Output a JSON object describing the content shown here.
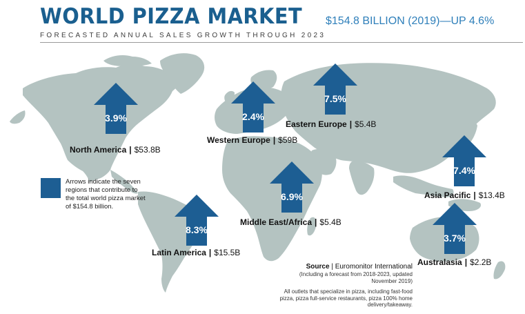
{
  "header": {
    "title": "WORLD PIZZA MARKET",
    "subtitle": "FORECASTED ANNUAL SALES GROWTH THROUGH 2023",
    "headline": "$154.8 BILLION (2019)—UP 4.6%"
  },
  "colors": {
    "title": "#1a5f8f",
    "headline": "#2e7fba",
    "arrow_fill": "#1d5e93",
    "land": "#b4c3c1"
  },
  "regions": [
    {
      "name": "North America",
      "value": "$53.8B",
      "growth": "3.9%",
      "growth_pct": 3.9
    },
    {
      "name": "Western Europe",
      "value": "$59B",
      "growth": "2.4%",
      "growth_pct": 2.4
    },
    {
      "name": "Eastern Europe",
      "value": "$5.4B",
      "growth": "7.5%",
      "growth_pct": 7.5
    },
    {
      "name": "Asia Pacific",
      "value": "$13.4B",
      "growth": "7.4%",
      "growth_pct": 7.4
    },
    {
      "name": "Middle East/Africa",
      "value": "$5.4B",
      "growth": "6.9%",
      "growth_pct": 6.9
    },
    {
      "name": "Latin America",
      "value": "$15.5B",
      "growth": "8.3%",
      "growth_pct": 8.3
    },
    {
      "name": "Australasia",
      "value": "$2.2B",
      "growth": "3.7%",
      "growth_pct": 3.7
    }
  ],
  "separator": "|",
  "legend": {
    "text": "Arrows indicate the seven regions that contribute to the total world pizza market of $154.8 billion."
  },
  "source": {
    "label": "Source",
    "org": "Euromonitor International",
    "detail": "(Including a forecast from 2018-2023, updated November 2019)",
    "note": "All outlets that specialize in pizza, including fast-food pizza, pizza full-service restaurants, pizza 100% home delivery/takeaway."
  }
}
